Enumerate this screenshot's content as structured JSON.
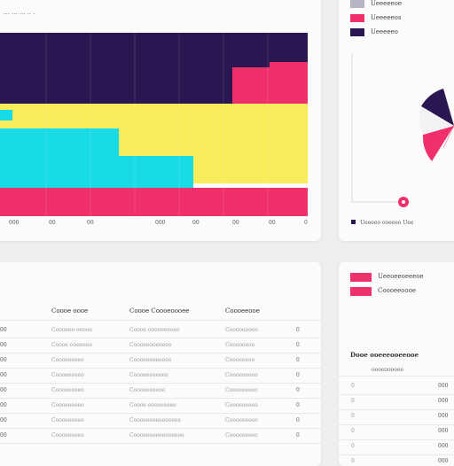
{
  "chart": {
    "title": "··· ··· ··· ·· ·",
    "colors": {
      "navy": "#2a1650",
      "pink": "#f0306a",
      "yellow": "#f8ec5a",
      "cyan": "#19dbe8"
    },
    "x_ticks": [
      "000",
      "00",
      "00",
      "000",
      "00",
      "00",
      "00",
      "0"
    ]
  },
  "right_top": {
    "legend": [
      {
        "label": "Ueeeeeoe",
        "color": "#b9b3c6"
      },
      {
        "label": "Ueeeeeos",
        "color": "#f0306a"
      },
      {
        "label": "Ueeeeeo",
        "color": "#2a1650"
      }
    ],
    "footer": "Ueeeeo ooeeeo Uee"
  },
  "table": {
    "headers": [
      "Coooe oooe",
      "Coooe Coooeoooee",
      "Coooeeooe"
    ],
    "rows": [
      {
        "lead": "00",
        "c1": "Coooeeo ooooe",
        "c2": "Coooe ooooeeeeee",
        "c3": "Cooooeoooo",
        "d": "0"
      },
      {
        "lead": "00",
        "c1": "Coooe ooeeeeo",
        "c2": "Coooeeooeeeee",
        "c3": "Cooooeeoo",
        "d": "0"
      },
      {
        "lead": "00",
        "c1": "Coooeeeeeo",
        "c2": "Coooeeeeeeeee",
        "c3": "Coooeeeeo",
        "d": "0"
      },
      {
        "lead": "00",
        "c1": "Coooeeeeeo",
        "c2": "Coooeeeeeeee",
        "c3": "Coooeeeeeo",
        "d": "0"
      },
      {
        "lead": "00",
        "c1": "Coooeeeeeo",
        "c2": "Coooeeeeeoo",
        "c3": "Coooeeeeeo",
        "d": "0"
      },
      {
        "lead": "00",
        "c1": "Coooeeeeeo",
        "c2": "Coooe eeeeeeeee",
        "c3": "Coooeeeeeo",
        "d": "0"
      },
      {
        "lead": "00",
        "c1": "Coooeeeeeo",
        "c2": "Coooeeeeeeeeeeee",
        "c3": "Coooeeeeeo",
        "d": "0"
      },
      {
        "lead": "00",
        "c1": "Coooeeeeeo",
        "c2": "Coooeeeeeeeeeeeee",
        "c3": "Coooeeeeeo",
        "d": "0"
      }
    ]
  },
  "right_bottom": {
    "legend": [
      {
        "label": "Ueeoeeoeeeoe",
        "color": "#f0306a"
      },
      {
        "label": "Coooeeoooe",
        "color": "#f0306a"
      }
    ],
    "title": "Dooe ooeeeooeeooe",
    "sub": "oooeoooooe",
    "rows": [
      {
        "lead": "0",
        "val": "000"
      },
      {
        "lead": "0",
        "val": "000"
      },
      {
        "lead": "0",
        "val": "000"
      },
      {
        "lead": "0",
        "val": "000"
      },
      {
        "lead": "0",
        "val": "000"
      },
      {
        "lead": "0",
        "val": "000"
      }
    ]
  }
}
